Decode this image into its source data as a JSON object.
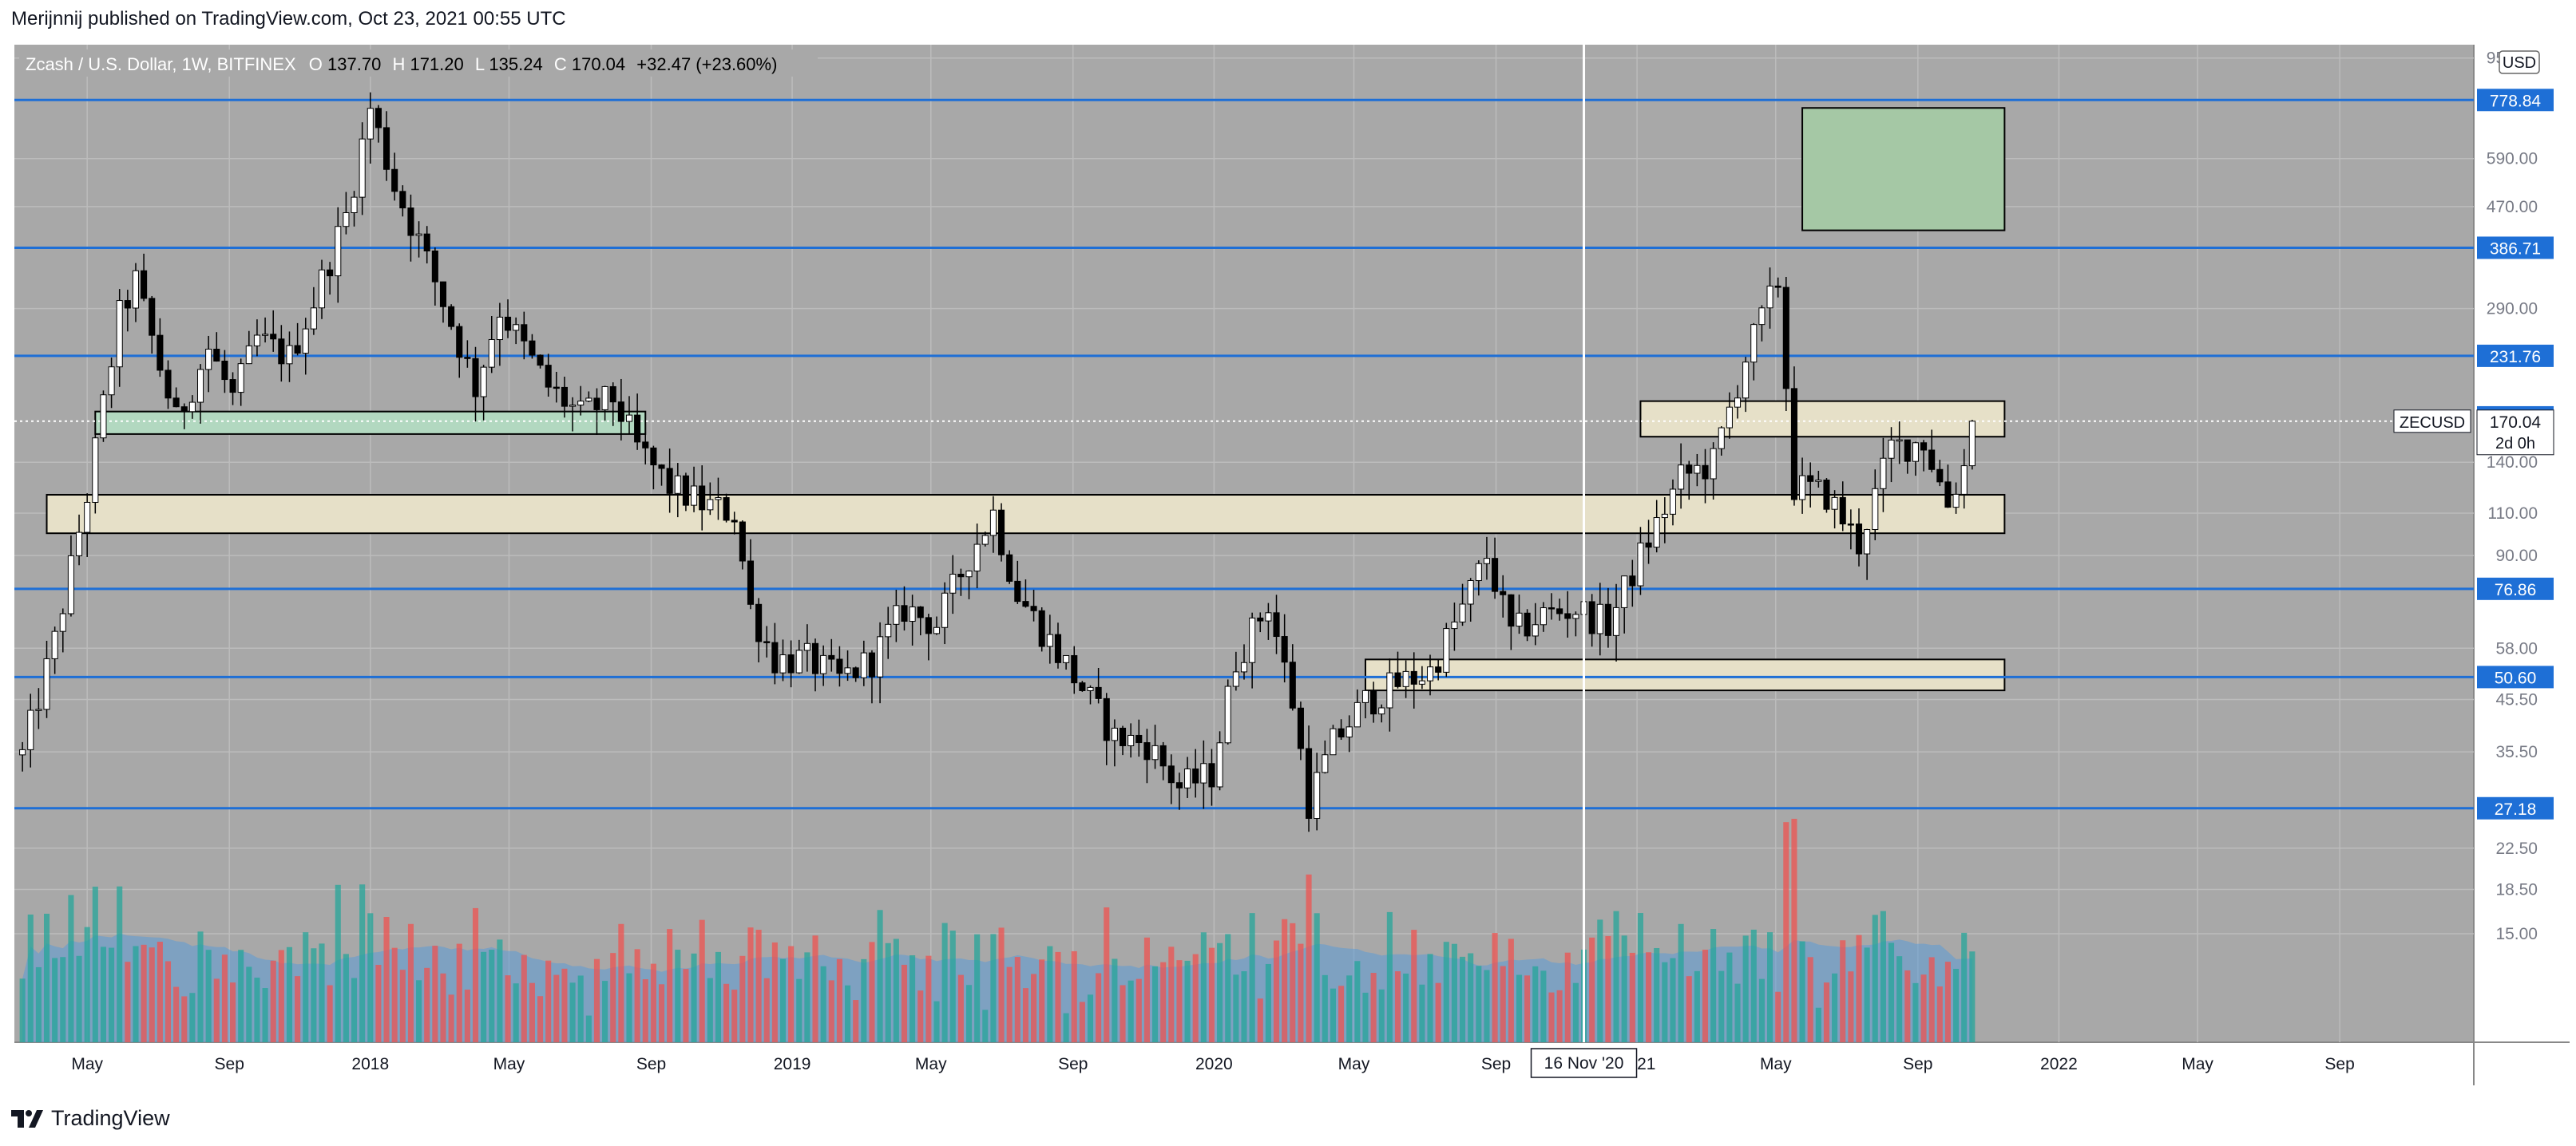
{
  "header": {
    "published_line": "Merijnnij published on TradingView.com, Oct 23, 2021 00:55 UTC"
  },
  "legend": {
    "symbol_line": "Zcash / U.S. Dollar, 1W, BITFINEX",
    "open_label": "O",
    "open_value": "137.70",
    "high_label": "H",
    "high_value": "171.20",
    "low_label": "L",
    "low_value": "135.24",
    "close_label": "C",
    "close_value": "170.04",
    "change": "+32.47 (+23.60%)"
  },
  "footer": {
    "brand": "TradingView"
  },
  "chart_data": {
    "type": "candlestick",
    "symbol": "ZECUSD",
    "exchange": "BITFINEX",
    "interval": "1W",
    "currency": "USD",
    "y_scale": "log",
    "y_axis_range": [
      10,
      950
    ],
    "price_tick_labels": [
      {
        "value": 950,
        "label": "950.00"
      },
      {
        "value": 590,
        "label": "590.00"
      },
      {
        "value": 470,
        "label": "470.00"
      },
      {
        "value": 290,
        "label": "290.00"
      },
      {
        "value": 140,
        "label": "140.00"
      },
      {
        "value": 110,
        "label": "110.00"
      },
      {
        "value": 90,
        "label": "90.00"
      },
      {
        "value": 58,
        "label": "58.00"
      },
      {
        "value": 45.5,
        "label": "45.50"
      },
      {
        "value": 35.5,
        "label": "35.50"
      },
      {
        "value": 22.5,
        "label": "22.50"
      },
      {
        "value": 18.5,
        "label": "18.50"
      },
      {
        "value": 15,
        "label": "15.00"
      }
    ],
    "horizontal_levels": [
      {
        "value": 778.84,
        "label": "778.84"
      },
      {
        "value": 386.71,
        "label": "386.71"
      },
      {
        "value": 231.76,
        "label": "231.76"
      },
      {
        "value": 173.18,
        "label": "173.18"
      },
      {
        "value": 76.86,
        "label": "76.86"
      },
      {
        "value": 50.6,
        "label": "50.60"
      },
      {
        "value": 27.18,
        "label": "27.18"
      }
    ],
    "time_tick_labels": [
      {
        "date": "2017-05-01",
        "label": "May"
      },
      {
        "date": "2017-09-01",
        "label": "Sep"
      },
      {
        "date": "2018-01-01",
        "label": "2018"
      },
      {
        "date": "2018-05-01",
        "label": "May"
      },
      {
        "date": "2018-09-01",
        "label": "Sep"
      },
      {
        "date": "2019-01-01",
        "label": "2019"
      },
      {
        "date": "2019-05-01",
        "label": "May"
      },
      {
        "date": "2019-09-01",
        "label": "Sep"
      },
      {
        "date": "2020-01-01",
        "label": "2020"
      },
      {
        "date": "2020-05-01",
        "label": "May"
      },
      {
        "date": "2020-09-01",
        "label": "Sep"
      },
      {
        "date": "2021-01-01",
        "label": "2021"
      },
      {
        "date": "2021-05-01",
        "label": "May"
      },
      {
        "date": "2021-09-01",
        "label": "Sep"
      },
      {
        "date": "2022-01-01",
        "label": "2022"
      },
      {
        "date": "2022-05-01",
        "label": "May"
      },
      {
        "date": "2022-09-01",
        "label": "Sep"
      }
    ],
    "crosshair": {
      "date": "2020-11-16",
      "label": "16 Nov '20"
    },
    "current_price": {
      "value": 170.04,
      "label": "170.04",
      "symbol_label": "ZECUSD",
      "countdown": "2d 0h"
    },
    "zones": [
      {
        "from": "2017-05-08",
        "to": "2018-08-27",
        "low": 160,
        "high": 178,
        "color": "#b2d8c0"
      },
      {
        "from": "2017-03-27",
        "to": "2021-11-15",
        "low": 100,
        "high": 120,
        "color": "#e6e0c8"
      },
      {
        "from": "2020-05-11",
        "to": "2021-11-15",
        "low": 47.5,
        "high": 55,
        "color": "#e6e0c8"
      },
      {
        "from": "2021-01-04",
        "to": "2021-11-15",
        "low": 158,
        "high": 187,
        "color": "#e6e0c8"
      },
      {
        "from": "2021-05-24",
        "to": "2021-11-15",
        "low": 420,
        "high": 750,
        "color": "#a5c8a5"
      }
    ],
    "key_points": [
      {
        "date": "2017-03-06",
        "close": 35
      },
      {
        "date": "2017-04-03",
        "close": 60
      },
      {
        "date": "2017-05-01",
        "close": 120
      },
      {
        "date": "2017-05-29",
        "close": 280
      },
      {
        "date": "2017-06-12",
        "close": 330
      },
      {
        "date": "2017-07-03",
        "close": 220
      },
      {
        "date": "2017-07-17",
        "close": 170
      },
      {
        "date": "2017-08-14",
        "close": 240
      },
      {
        "date": "2017-09-04",
        "close": 190
      },
      {
        "date": "2017-09-25",
        "close": 250
      },
      {
        "date": "2017-10-23",
        "close": 230
      },
      {
        "date": "2017-11-13",
        "close": 300
      },
      {
        "date": "2017-12-11",
        "close": 450
      },
      {
        "date": "2018-01-01",
        "close": 750
      },
      {
        "date": "2018-01-22",
        "close": 520
      },
      {
        "date": "2018-02-12",
        "close": 400
      },
      {
        "date": "2018-03-05",
        "close": 300
      },
      {
        "date": "2018-04-02",
        "close": 200
      },
      {
        "date": "2018-04-23",
        "close": 290
      },
      {
        "date": "2018-05-14",
        "close": 240
      },
      {
        "date": "2018-06-04",
        "close": 200
      },
      {
        "date": "2018-07-02",
        "close": 175
      },
      {
        "date": "2018-07-30",
        "close": 190
      },
      {
        "date": "2018-08-20",
        "close": 150
      },
      {
        "date": "2018-09-17",
        "close": 125
      },
      {
        "date": "2018-10-15",
        "close": 115
      },
      {
        "date": "2018-11-12",
        "close": 110
      },
      {
        "date": "2018-11-26",
        "close": 70
      },
      {
        "date": "2018-12-17",
        "close": 55
      },
      {
        "date": "2019-01-14",
        "close": 55
      },
      {
        "date": "2019-02-11",
        "close": 50
      },
      {
        "date": "2019-03-11",
        "close": 55
      },
      {
        "date": "2019-04-08",
        "close": 70
      },
      {
        "date": "2019-05-06",
        "close": 65
      },
      {
        "date": "2019-06-03",
        "close": 90
      },
      {
        "date": "2019-06-24",
        "close": 110
      },
      {
        "date": "2019-07-15",
        "close": 75
      },
      {
        "date": "2019-08-12",
        "close": 60
      },
      {
        "date": "2019-09-09",
        "close": 48
      },
      {
        "date": "2019-10-07",
        "close": 38
      },
      {
        "date": "2019-11-04",
        "close": 37
      },
      {
        "date": "2019-12-02",
        "close": 30
      },
      {
        "date": "2019-12-30",
        "close": 32
      },
      {
        "date": "2020-01-20",
        "close": 55
      },
      {
        "date": "2020-02-17",
        "close": 72
      },
      {
        "date": "2020-03-09",
        "close": 45
      },
      {
        "date": "2020-03-23",
        "close": 28
      },
      {
        "date": "2020-04-13",
        "close": 37
      },
      {
        "date": "2020-05-11",
        "close": 45
      },
      {
        "date": "2020-06-08",
        "close": 49
      },
      {
        "date": "2020-07-06",
        "close": 52
      },
      {
        "date": "2020-08-03",
        "close": 70
      },
      {
        "date": "2020-08-24",
        "close": 90
      },
      {
        "date": "2020-09-14",
        "close": 62
      },
      {
        "date": "2020-10-12",
        "close": 68
      },
      {
        "date": "2020-11-09",
        "close": 70
      },
      {
        "date": "2020-12-07",
        "close": 65
      },
      {
        "date": "2021-01-04",
        "close": 90
      },
      {
        "date": "2021-02-08",
        "close": 130
      },
      {
        "date": "2021-03-08",
        "close": 140
      },
      {
        "date": "2021-04-05",
        "close": 230
      },
      {
        "date": "2021-05-03",
        "close": 330
      },
      {
        "date": "2021-05-17",
        "close": 125
      },
      {
        "date": "2021-06-14",
        "close": 120
      },
      {
        "date": "2021-07-12",
        "close": 95
      },
      {
        "date": "2021-08-09",
        "close": 150
      },
      {
        "date": "2021-09-06",
        "close": 155
      },
      {
        "date": "2021-09-27",
        "close": 115
      },
      {
        "date": "2021-10-11",
        "close": 137.7
      },
      {
        "date": "2021-10-18",
        "close": 170.04
      }
    ],
    "colors": {
      "background": "#a8a8a8",
      "up_candle": "#ffffff",
      "down_candle": "#000000",
      "level_line": "#1e6fd6",
      "volume_up": "#26a69a",
      "volume_down": "#ef5350",
      "volume_ma": "#5b9bd5"
    }
  }
}
